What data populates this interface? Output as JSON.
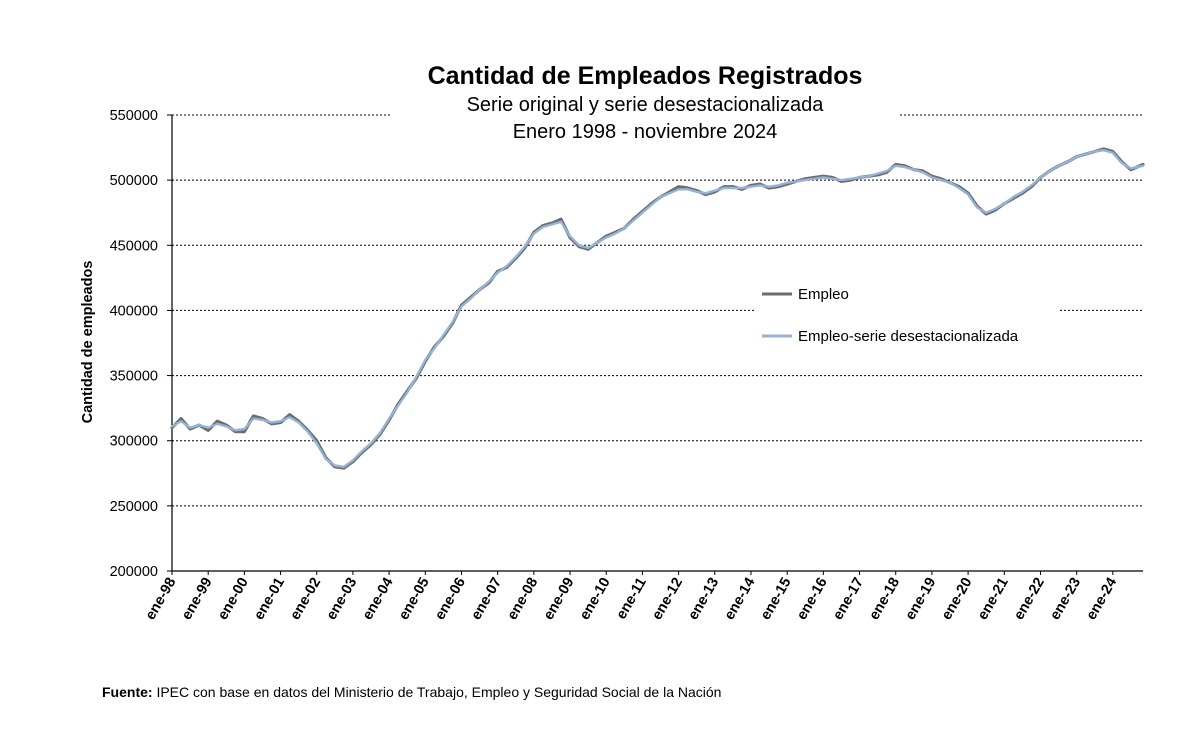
{
  "chart_data": {
    "type": "line",
    "title": "Cantidad de Empleados Registrados",
    "subtitle": [
      "Serie original y serie desestacionalizada",
      "Enero 1998 - noviembre 2024"
    ],
    "ylabel": "Cantidad de empleados",
    "xlabel": "",
    "ylim": [
      200000,
      550000
    ],
    "yticks": [
      "200000",
      "250000",
      "300000",
      "350000",
      "400000",
      "450000",
      "500000",
      "550000"
    ],
    "x_tick_labels": [
      "ene-98",
      "ene-99",
      "ene-00",
      "ene-01",
      "ene-02",
      "ene-03",
      "ene-04",
      "ene-05",
      "ene-06",
      "ene-07",
      "ene-08",
      "ene-09",
      "ene-10",
      "ene-11",
      "ene-12",
      "ene-13",
      "ene-14",
      "ene-15",
      "ene-16",
      "ene-17",
      "ene-18",
      "ene-19",
      "ene-20",
      "ene-21",
      "ene-22",
      "ene-23",
      "ene-24"
    ],
    "x_start": "1998-01",
    "x_end": "2024-11",
    "grid": "horizontal dashed",
    "legend_position": "right",
    "series": [
      {
        "name": "Empleo",
        "color": "#6d6d6d",
        "points": [
          [
            "1998-01",
            310000
          ],
          [
            "1998-04",
            317000
          ],
          [
            "1998-07",
            309000
          ],
          [
            "1998-10",
            312000
          ],
          [
            "1999-01",
            308000
          ],
          [
            "1999-04",
            315000
          ],
          [
            "1999-07",
            312000
          ],
          [
            "1999-10",
            307000
          ],
          [
            "2000-01",
            307000
          ],
          [
            "2000-04",
            319000
          ],
          [
            "2000-07",
            317000
          ],
          [
            "2000-10",
            313000
          ],
          [
            "2001-01",
            314000
          ],
          [
            "2001-04",
            320000
          ],
          [
            "2001-07",
            315000
          ],
          [
            "2001-10",
            308000
          ],
          [
            "2002-01",
            300000
          ],
          [
            "2002-04",
            287000
          ],
          [
            "2002-07",
            280000
          ],
          [
            "2002-10",
            279000
          ],
          [
            "2003-01",
            284000
          ],
          [
            "2003-04",
            291000
          ],
          [
            "2003-07",
            297000
          ],
          [
            "2003-10",
            305000
          ],
          [
            "2004-01",
            316000
          ],
          [
            "2004-04",
            328000
          ],
          [
            "2004-07",
            338000
          ],
          [
            "2004-10",
            348000
          ],
          [
            "2005-01",
            361000
          ],
          [
            "2005-04",
            372000
          ],
          [
            "2005-07",
            380000
          ],
          [
            "2005-10",
            390000
          ],
          [
            "2006-01",
            404000
          ],
          [
            "2006-04",
            410000
          ],
          [
            "2006-07",
            416000
          ],
          [
            "2006-10",
            421000
          ],
          [
            "2007-01",
            430000
          ],
          [
            "2007-04",
            433000
          ],
          [
            "2007-07",
            440000
          ],
          [
            "2007-10",
            448000
          ],
          [
            "2008-01",
            460000
          ],
          [
            "2008-04",
            465000
          ],
          [
            "2008-07",
            467000
          ],
          [
            "2008-10",
            470000
          ],
          [
            "2009-01",
            456000
          ],
          [
            "2009-04",
            449000
          ],
          [
            "2009-07",
            447000
          ],
          [
            "2009-10",
            452000
          ],
          [
            "2010-01",
            457000
          ],
          [
            "2010-04",
            460000
          ],
          [
            "2010-07",
            463000
          ],
          [
            "2010-10",
            470000
          ],
          [
            "2011-01",
            476000
          ],
          [
            "2011-04",
            482000
          ],
          [
            "2011-07",
            487000
          ],
          [
            "2011-10",
            491000
          ],
          [
            "2012-01",
            495000
          ],
          [
            "2012-04",
            494000
          ],
          [
            "2012-07",
            492000
          ],
          [
            "2012-10",
            489000
          ],
          [
            "2013-01",
            491000
          ],
          [
            "2013-04",
            495000
          ],
          [
            "2013-07",
            495000
          ],
          [
            "2013-10",
            493000
          ],
          [
            "2014-01",
            496000
          ],
          [
            "2014-04",
            497000
          ],
          [
            "2014-07",
            494000
          ],
          [
            "2014-10",
            495000
          ],
          [
            "2015-01",
            497000
          ],
          [
            "2015-04",
            499000
          ],
          [
            "2015-07",
            501000
          ],
          [
            "2015-10",
            502000
          ],
          [
            "2016-01",
            503000
          ],
          [
            "2016-04",
            502000
          ],
          [
            "2016-07",
            499000
          ],
          [
            "2016-10",
            500000
          ],
          [
            "2017-01",
            502000
          ],
          [
            "2017-04",
            503000
          ],
          [
            "2017-07",
            504000
          ],
          [
            "2017-10",
            506000
          ],
          [
            "2018-01",
            512000
          ],
          [
            "2018-04",
            511000
          ],
          [
            "2018-07",
            508000
          ],
          [
            "2018-10",
            507000
          ],
          [
            "2019-01",
            503000
          ],
          [
            "2019-04",
            501000
          ],
          [
            "2019-07",
            498000
          ],
          [
            "2019-10",
            495000
          ],
          [
            "2020-01",
            490000
          ],
          [
            "2020-04",
            480000
          ],
          [
            "2020-07",
            474000
          ],
          [
            "2020-10",
            477000
          ],
          [
            "2021-01",
            482000
          ],
          [
            "2021-04",
            486000
          ],
          [
            "2021-07",
            490000
          ],
          [
            "2021-10",
            495000
          ],
          [
            "2022-01",
            502000
          ],
          [
            "2022-04",
            507000
          ],
          [
            "2022-07",
            511000
          ],
          [
            "2022-10",
            514000
          ],
          [
            "2023-01",
            518000
          ],
          [
            "2023-04",
            520000
          ],
          [
            "2023-07",
            522000
          ],
          [
            "2023-10",
            524000
          ],
          [
            "2024-01",
            522000
          ],
          [
            "2024-04",
            514000
          ],
          [
            "2024-07",
            508000
          ],
          [
            "2024-11",
            512000
          ]
        ]
      },
      {
        "name": "Empleo-serie desestacionalizada",
        "color": "#95b3d7",
        "points": [
          [
            "1998-01",
            311000
          ],
          [
            "1998-04",
            315000
          ],
          [
            "1998-07",
            310000
          ],
          [
            "1998-10",
            312000
          ],
          [
            "1999-01",
            310000
          ],
          [
            "1999-04",
            313000
          ],
          [
            "1999-07",
            311000
          ],
          [
            "1999-10",
            308000
          ],
          [
            "2000-01",
            309000
          ],
          [
            "2000-04",
            317000
          ],
          [
            "2000-07",
            316000
          ],
          [
            "2000-10",
            314000
          ],
          [
            "2001-01",
            315000
          ],
          [
            "2001-04",
            318000
          ],
          [
            "2001-07",
            314000
          ],
          [
            "2001-10",
            307000
          ],
          [
            "2002-01",
            298000
          ],
          [
            "2002-04",
            286000
          ],
          [
            "2002-07",
            281000
          ],
          [
            "2002-10",
            280000
          ],
          [
            "2003-01",
            285000
          ],
          [
            "2003-04",
            292000
          ],
          [
            "2003-07",
            298000
          ],
          [
            "2003-10",
            306000
          ],
          [
            "2004-01",
            317000
          ],
          [
            "2004-04",
            327000
          ],
          [
            "2004-07",
            337000
          ],
          [
            "2004-10",
            349000
          ],
          [
            "2005-01",
            362000
          ],
          [
            "2005-04",
            371000
          ],
          [
            "2005-07",
            381000
          ],
          [
            "2005-10",
            391000
          ],
          [
            "2006-01",
            403000
          ],
          [
            "2006-04",
            409000
          ],
          [
            "2006-07",
            416000
          ],
          [
            "2006-10",
            422000
          ],
          [
            "2007-01",
            429000
          ],
          [
            "2007-04",
            434000
          ],
          [
            "2007-07",
            441000
          ],
          [
            "2007-10",
            449000
          ],
          [
            "2008-01",
            459000
          ],
          [
            "2008-04",
            464000
          ],
          [
            "2008-07",
            466000
          ],
          [
            "2008-10",
            468000
          ],
          [
            "2009-01",
            457000
          ],
          [
            "2009-04",
            450000
          ],
          [
            "2009-07",
            448000
          ],
          [
            "2009-10",
            452000
          ],
          [
            "2010-01",
            456000
          ],
          [
            "2010-04",
            459000
          ],
          [
            "2010-07",
            463000
          ],
          [
            "2010-10",
            469000
          ],
          [
            "2011-01",
            475000
          ],
          [
            "2011-04",
            481000
          ],
          [
            "2011-07",
            487000
          ],
          [
            "2011-10",
            490000
          ],
          [
            "2012-01",
            493000
          ],
          [
            "2012-04",
            493000
          ],
          [
            "2012-07",
            491000
          ],
          [
            "2012-10",
            490000
          ],
          [
            "2013-01",
            492000
          ],
          [
            "2013-04",
            494000
          ],
          [
            "2013-07",
            494000
          ],
          [
            "2013-10",
            494000
          ],
          [
            "2014-01",
            495000
          ],
          [
            "2014-04",
            496000
          ],
          [
            "2014-07",
            495000
          ],
          [
            "2014-10",
            496000
          ],
          [
            "2015-01",
            498000
          ],
          [
            "2015-04",
            499000
          ],
          [
            "2015-07",
            500000
          ],
          [
            "2015-10",
            501000
          ],
          [
            "2016-01",
            502000
          ],
          [
            "2016-04",
            501000
          ],
          [
            "2016-07",
            500000
          ],
          [
            "2016-10",
            501000
          ],
          [
            "2017-01",
            502000
          ],
          [
            "2017-04",
            503000
          ],
          [
            "2017-07",
            505000
          ],
          [
            "2017-10",
            507000
          ],
          [
            "2018-01",
            511000
          ],
          [
            "2018-04",
            510000
          ],
          [
            "2018-07",
            508000
          ],
          [
            "2018-10",
            506000
          ],
          [
            "2019-01",
            502000
          ],
          [
            "2019-04",
            500000
          ],
          [
            "2019-07",
            498000
          ],
          [
            "2019-10",
            494000
          ],
          [
            "2020-01",
            489000
          ],
          [
            "2020-04",
            479000
          ],
          [
            "2020-07",
            475000
          ],
          [
            "2020-10",
            478000
          ],
          [
            "2021-01",
            482000
          ],
          [
            "2021-04",
            487000
          ],
          [
            "2021-07",
            491000
          ],
          [
            "2021-10",
            496000
          ],
          [
            "2022-01",
            502000
          ],
          [
            "2022-04",
            507000
          ],
          [
            "2022-07",
            511000
          ],
          [
            "2022-10",
            514000
          ],
          [
            "2023-01",
            518000
          ],
          [
            "2023-04",
            520000
          ],
          [
            "2023-07",
            522000
          ],
          [
            "2023-10",
            523000
          ],
          [
            "2024-01",
            521000
          ],
          [
            "2024-04",
            513000
          ],
          [
            "2024-07",
            509000
          ],
          [
            "2024-11",
            511000
          ]
        ]
      }
    ]
  },
  "source": {
    "label": "Fuente:",
    "text": "IPEC con base en datos del Ministerio de Trabajo, Empleo y Seguridad Social de la Nación"
  }
}
